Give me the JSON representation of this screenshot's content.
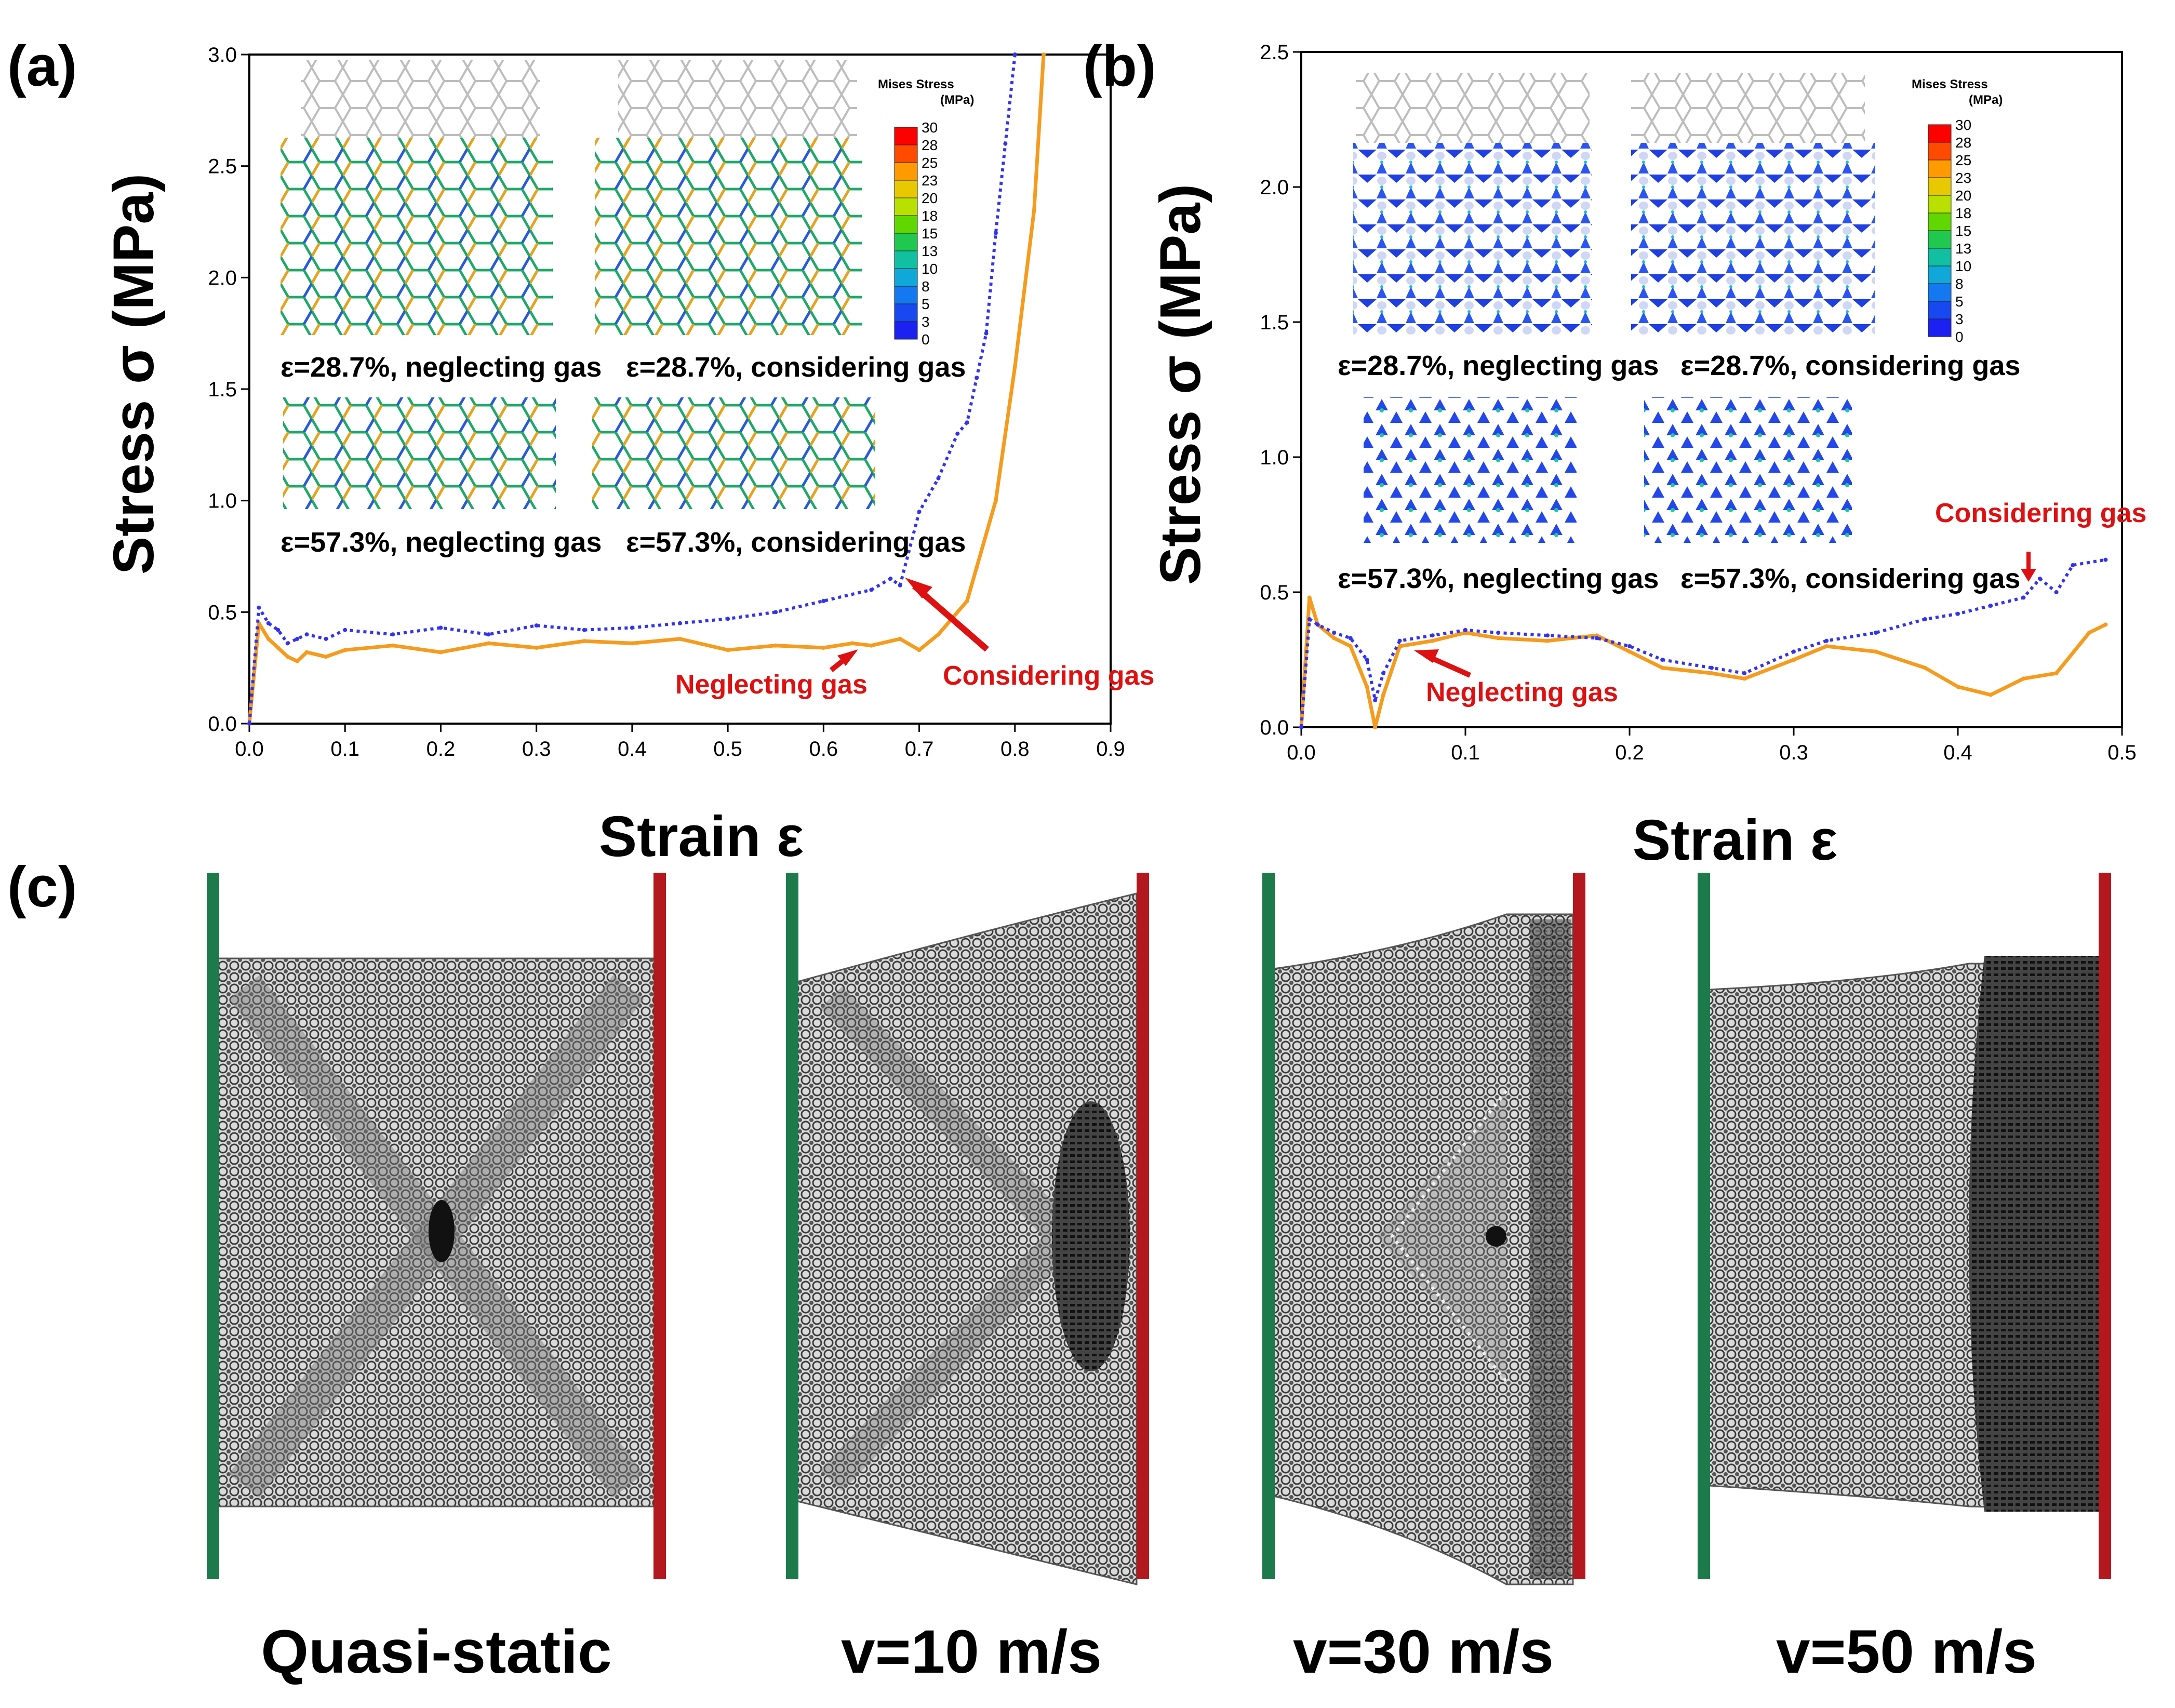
{
  "panels": {
    "a": {
      "label": "(a)",
      "ylabel": "Stress σ (MPa)",
      "xlabel": "Strain ε",
      "annotations": {
        "neglect": "Neglecting gas",
        "consider": "Considering gas"
      },
      "insets": [
        "ε=28.7%, neglecting gas",
        "ε=28.7%, considering gas",
        "ε=57.3%, neglecting gas",
        "ε=57.3%, considering gas"
      ],
      "colorbar": {
        "title_1": "Mises Stress",
        "title_2": "(MPa)",
        "ticks": [
          "30",
          "28",
          "25",
          "23",
          "20",
          "18",
          "15",
          "13",
          "10",
          "8",
          "5",
          "3",
          "0"
        ]
      }
    },
    "b": {
      "label": "(b)",
      "ylabel": "Stress σ (MPa)",
      "xlabel": "Strain ε",
      "annotations": {
        "neglect": "Neglecting gas",
        "consider": "Considering gas"
      },
      "insets": [
        "ε=28.7%, neglecting gas",
        "ε=28.7%, considering gas",
        "ε=57.3%, neglecting gas",
        "ε=57.3%, considering gas"
      ],
      "colorbar": {
        "title_1": "Mises Stress",
        "title_2": "(MPa)",
        "ticks": [
          "30",
          "28",
          "25",
          "23",
          "20",
          "18",
          "15",
          "13",
          "10",
          "8",
          "5",
          "3",
          "0"
        ]
      }
    },
    "c": {
      "label": "(c)",
      "captions": [
        "Quasi-static",
        "v=10 m/s",
        "v=30 m/s",
        "v=50 m/s"
      ]
    }
  },
  "chart_data": [
    {
      "id": "a",
      "type": "line",
      "title": "",
      "xlabel": "Strain ε",
      "ylabel": "Stress σ (MPa)",
      "xlim": [
        0.0,
        0.9
      ],
      "ylim": [
        0.0,
        3.0
      ],
      "xticks": [
        0.0,
        0.1,
        0.2,
        0.3,
        0.4,
        0.5,
        0.6,
        0.7,
        0.8,
        0.9
      ],
      "yticks": [
        0.0,
        0.5,
        1.0,
        1.5,
        2.0,
        2.5,
        3.0
      ],
      "series": [
        {
          "name": "Neglecting gas",
          "color": "#f59b1e",
          "style": "solid",
          "x": [
            0.0,
            0.01,
            0.02,
            0.03,
            0.04,
            0.05,
            0.06,
            0.08,
            0.1,
            0.15,
            0.2,
            0.25,
            0.3,
            0.35,
            0.4,
            0.45,
            0.5,
            0.55,
            0.6,
            0.63,
            0.65,
            0.68,
            0.7,
            0.72,
            0.75,
            0.76,
            0.78,
            0.8,
            0.82,
            0.83
          ],
          "y": [
            0.0,
            0.45,
            0.38,
            0.34,
            0.3,
            0.28,
            0.32,
            0.3,
            0.33,
            0.35,
            0.32,
            0.36,
            0.34,
            0.37,
            0.36,
            0.38,
            0.33,
            0.35,
            0.34,
            0.36,
            0.35,
            0.38,
            0.33,
            0.4,
            0.55,
            0.7,
            1.0,
            1.6,
            2.3,
            3.0
          ]
        },
        {
          "name": "Considering gas",
          "color": "#3333ee",
          "style": "dotted",
          "x": [
            0.0,
            0.01,
            0.02,
            0.03,
            0.04,
            0.05,
            0.06,
            0.08,
            0.1,
            0.15,
            0.2,
            0.25,
            0.3,
            0.35,
            0.4,
            0.45,
            0.5,
            0.55,
            0.6,
            0.65,
            0.67,
            0.68,
            0.7,
            0.72,
            0.74,
            0.75,
            0.76,
            0.77,
            0.78,
            0.79,
            0.8
          ],
          "y": [
            0.0,
            0.52,
            0.45,
            0.42,
            0.36,
            0.38,
            0.4,
            0.38,
            0.42,
            0.4,
            0.43,
            0.4,
            0.44,
            0.42,
            0.43,
            0.45,
            0.47,
            0.5,
            0.55,
            0.6,
            0.65,
            0.62,
            0.95,
            1.1,
            1.3,
            1.35,
            1.55,
            1.75,
            2.2,
            2.6,
            3.0
          ]
        }
      ]
    },
    {
      "id": "b",
      "type": "line",
      "title": "",
      "xlabel": "Strain ε",
      "ylabel": "Stress σ (MPa)",
      "xlim": [
        0.0,
        0.5
      ],
      "ylim": [
        0.0,
        2.5
      ],
      "xticks": [
        0.0,
        0.1,
        0.2,
        0.3,
        0.4,
        0.5
      ],
      "yticks": [
        0.0,
        0.5,
        1.0,
        1.5,
        2.0,
        2.5
      ],
      "series": [
        {
          "name": "Neglecting gas",
          "color": "#f59b1e",
          "style": "solid",
          "x": [
            0.0,
            0.005,
            0.01,
            0.02,
            0.03,
            0.04,
            0.045,
            0.05,
            0.06,
            0.08,
            0.1,
            0.12,
            0.15,
            0.18,
            0.2,
            0.22,
            0.25,
            0.27,
            0.3,
            0.32,
            0.35,
            0.38,
            0.4,
            0.42,
            0.44,
            0.46,
            0.48,
            0.49
          ],
          "y": [
            0.0,
            0.48,
            0.38,
            0.33,
            0.3,
            0.15,
            0.0,
            0.12,
            0.3,
            0.32,
            0.35,
            0.33,
            0.32,
            0.34,
            0.28,
            0.22,
            0.2,
            0.18,
            0.25,
            0.3,
            0.28,
            0.22,
            0.15,
            0.12,
            0.18,
            0.2,
            0.35,
            0.38
          ]
        },
        {
          "name": "Considering gas",
          "color": "#3333ee",
          "style": "dotted",
          "x": [
            0.0,
            0.005,
            0.01,
            0.02,
            0.03,
            0.04,
            0.045,
            0.05,
            0.06,
            0.08,
            0.1,
            0.12,
            0.15,
            0.18,
            0.2,
            0.22,
            0.25,
            0.27,
            0.3,
            0.32,
            0.35,
            0.38,
            0.4,
            0.42,
            0.44,
            0.45,
            0.46,
            0.47,
            0.49
          ],
          "y": [
            0.0,
            0.4,
            0.38,
            0.35,
            0.33,
            0.25,
            0.1,
            0.2,
            0.32,
            0.34,
            0.36,
            0.35,
            0.34,
            0.33,
            0.3,
            0.25,
            0.22,
            0.2,
            0.28,
            0.32,
            0.35,
            0.4,
            0.42,
            0.45,
            0.48,
            0.55,
            0.5,
            0.6,
            0.62
          ]
        }
      ]
    }
  ],
  "colors": {
    "ignore_gas": "#f59b1e",
    "consider_gas": "#3333ee",
    "annotation": "#dd1111",
    "left_plate": "#1d7a4a",
    "right_plate": "#b3181f"
  }
}
